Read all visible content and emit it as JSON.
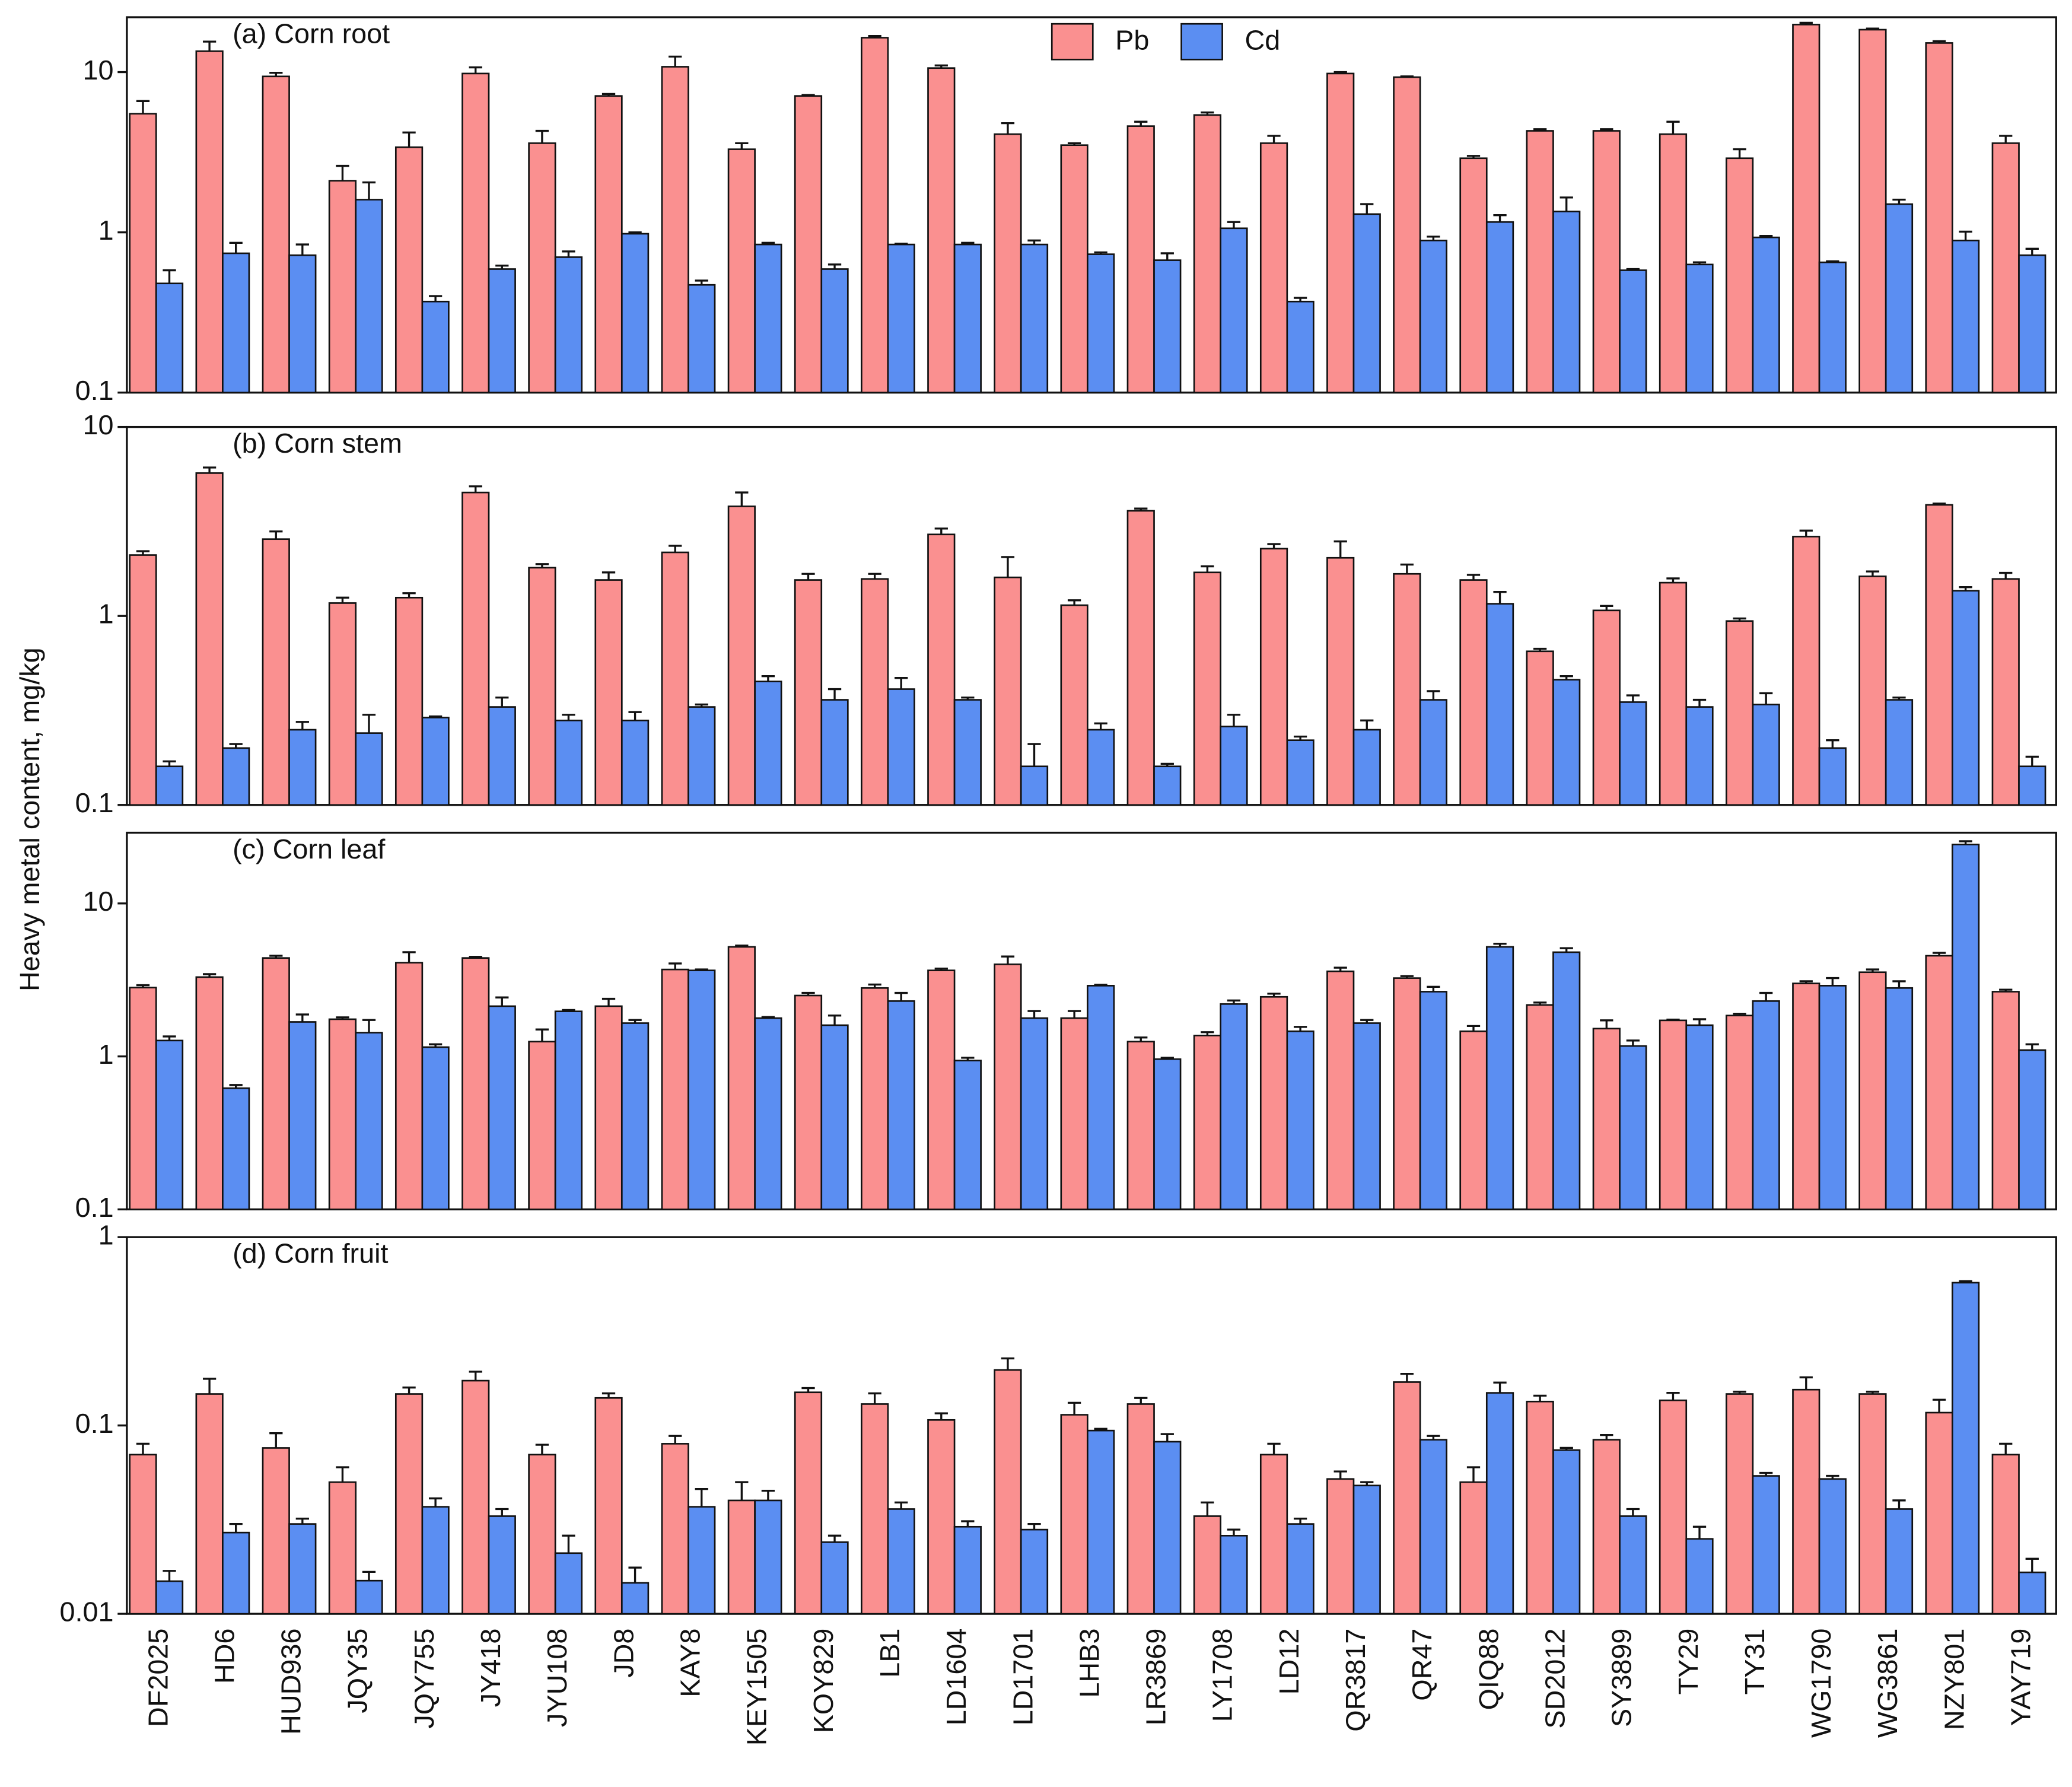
{
  "y_label": "Heavy metal content, mg/kg",
  "chart_data": [
    {
      "type": "bar",
      "title": "(a) Corn root",
      "log_scale": true,
      "ylim": [
        0.1,
        22
      ],
      "yticks": [
        0.1,
        1,
        10
      ],
      "legend": "upper center",
      "series": [
        {
          "name": "Pb",
          "color": "#fa9090",
          "values": [
            5.5,
            13.5,
            9.4,
            2.1,
            3.4,
            9.8,
            3.6,
            7.1,
            10.8,
            3.3,
            7.1,
            16.4,
            10.6,
            4.1,
            3.5,
            4.6,
            5.4,
            3.6,
            9.8,
            9.3,
            2.9,
            4.3,
            4.3,
            4.1,
            2.9,
            19.8,
            18.4,
            15.2,
            3.6
          ],
          "errors": [
            1.1,
            2,
            0.5,
            0.5,
            0.8,
            0.9,
            0.7,
            0.2,
            1.7,
            0.3,
            0.1,
            0.4,
            0.4,
            0.7,
            0.1,
            0.3,
            0.2,
            0.4,
            0.2,
            0.1,
            0.1,
            0.1,
            0.1,
            0.8,
            0.4,
            0.5,
            0.3,
            0.4,
            0.4
          ]
        },
        {
          "name": "Cd",
          "color": "#5b8ef2",
          "values": [
            0.48,
            0.74,
            0.72,
            1.6,
            0.37,
            0.59,
            0.7,
            0.98,
            0.47,
            0.84,
            0.59,
            0.84,
            0.84,
            0.84,
            0.73,
            0.67,
            1.06,
            0.37,
            1.3,
            0.89,
            1.16,
            1.35,
            0.58,
            0.63,
            0.93,
            0.65,
            1.5,
            0.89,
            0.72
          ],
          "errors": [
            0.1,
            0.12,
            0.12,
            0.45,
            0.03,
            0.03,
            0.06,
            0.02,
            0.03,
            0.02,
            0.04,
            0.01,
            0.02,
            0.05,
            0.02,
            0.07,
            0.1,
            0.02,
            0.2,
            0.05,
            0.12,
            0.3,
            0.01,
            0.02,
            0.02,
            0.01,
            0.1,
            0.12,
            0.07
          ]
        }
      ]
    },
    {
      "type": "bar",
      "title": "(b) Corn stem",
      "log_scale": true,
      "ylim": [
        0.1,
        10
      ],
      "yticks": [
        0.1,
        1,
        10
      ],
      "series": [
        {
          "color": "#fa9090",
          "values": [
            2.1,
            5.7,
            2.55,
            1.17,
            1.25,
            4.5,
            1.8,
            1.55,
            2.17,
            3.8,
            1.55,
            1.57,
            2.7,
            1.6,
            1.14,
            3.6,
            1.7,
            2.27,
            2.03,
            1.67,
            1.55,
            0.65,
            1.07,
            1.5,
            0.94,
            2.63,
            1.62,
            3.87,
            1.57
          ],
          "errors": [
            0.1,
            0.4,
            0.25,
            0.08,
            0.07,
            0.35,
            0.08,
            0.15,
            0.18,
            0.7,
            0.12,
            0.1,
            0.2,
            0.45,
            0.07,
            0.1,
            0.13,
            0.13,
            0.45,
            0.2,
            0.1,
            0.02,
            0.06,
            0.08,
            0.03,
            0.2,
            0.1,
            0.06,
            0.12
          ]
        },
        {
          "color": "#5b8ef2",
          "values": [
            0.16,
            0.2,
            0.25,
            0.24,
            0.29,
            0.33,
            0.28,
            0.28,
            0.33,
            0.45,
            0.36,
            0.41,
            0.36,
            0.16,
            0.25,
            0.16,
            0.26,
            0.22,
            0.25,
            0.36,
            1.16,
            0.46,
            0.35,
            0.33,
            0.34,
            0.2,
            0.36,
            1.36,
            0.16
          ],
          "errors": [
            0.01,
            0.01,
            0.025,
            0.06,
            0.004,
            0.04,
            0.02,
            0.03,
            0.01,
            0.03,
            0.05,
            0.06,
            0.01,
            0.05,
            0.02,
            0.005,
            0.04,
            0.01,
            0.03,
            0.04,
            0.18,
            0.02,
            0.03,
            0.03,
            0.05,
            0.02,
            0.01,
            0.06,
            0.02
          ]
        }
      ]
    },
    {
      "type": "bar",
      "title": "(c) Corn leaf",
      "log_scale": true,
      "ylim": [
        0.1,
        29
      ],
      "yticks": [
        0.1,
        1,
        10
      ],
      "series": [
        {
          "color": "#fa9090",
          "values": [
            2.82,
            3.3,
            4.4,
            1.75,
            4.1,
            4.4,
            1.25,
            2.13,
            3.7,
            5.2,
            2.5,
            2.8,
            3.65,
            4.0,
            1.78,
            1.25,
            1.37,
            2.45,
            3.6,
            3.25,
            1.46,
            2.17,
            1.52,
            1.72,
            1.85,
            3.0,
            3.55,
            4.55,
            2.65
          ],
          "errors": [
            0.1,
            0.15,
            0.15,
            0.05,
            0.7,
            0.08,
            0.25,
            0.25,
            0.35,
            0.1,
            0.1,
            0.15,
            0.1,
            0.5,
            0.2,
            0.08,
            0.07,
            0.12,
            0.2,
            0.1,
            0.12,
            0.08,
            0.2,
            0.02,
            0.05,
            0.1,
            0.15,
            0.2,
            0.08
          ]
        },
        {
          "color": "#5b8ef2",
          "values": [
            1.27,
            0.62,
            1.68,
            1.43,
            1.15,
            2.13,
            1.97,
            1.65,
            3.65,
            1.78,
            1.6,
            2.3,
            0.94,
            1.78,
            2.9,
            0.96,
            2.2,
            1.46,
            1.65,
            2.65,
            5.2,
            4.8,
            1.17,
            1.6,
            2.3,
            2.9,
            2.8,
            24.3,
            1.1
          ],
          "errors": [
            0.08,
            0.03,
            0.2,
            0.3,
            0.05,
            0.3,
            0.04,
            0.08,
            0.05,
            0.03,
            0.25,
            0.3,
            0.04,
            0.2,
            0.04,
            0.02,
            0.12,
            0.1,
            0.08,
            0.2,
            0.25,
            0.3,
            0.1,
            0.15,
            0.3,
            0.35,
            0.3,
            1.2,
            0.1
          ]
        }
      ]
    },
    {
      "type": "bar",
      "title": "(d) Corn fruit",
      "log_scale": true,
      "ylim": [
        0.01,
        1
      ],
      "yticks": [
        0.01,
        0.1,
        1
      ],
      "categories": [
        "DF2025",
        "HD6",
        "HUD936",
        "JQY35",
        "JQY755",
        "JY418",
        "JYU108",
        "JD8",
        "KAY8",
        "KEY1505",
        "KOY829",
        "LB1",
        "LD1604",
        "LD1701",
        "LHB3",
        "LR3869",
        "LY1708",
        "LD12",
        "QR3817",
        "QR47",
        "QIQ88",
        "SD2012",
        "SY3899",
        "TY29",
        "TY31",
        "WG1790",
        "WG3861",
        "NZY801",
        "YAY719"
      ],
      "series": [
        {
          "color": "#fa9090",
          "values": [
            0.07,
            0.147,
            0.076,
            0.05,
            0.147,
            0.173,
            0.07,
            0.14,
            0.08,
            0.04,
            0.15,
            0.13,
            0.107,
            0.197,
            0.114,
            0.13,
            0.033,
            0.07,
            0.052,
            0.17,
            0.05,
            0.134,
            0.084,
            0.136,
            0.147,
            0.155,
            0.147,
            0.117,
            0.07
          ],
          "errors": [
            0.01,
            0.03,
            0.015,
            0.01,
            0.012,
            0.02,
            0.009,
            0.008,
            0.008,
            0.01,
            0.008,
            0.018,
            0.009,
            0.03,
            0.018,
            0.01,
            0.006,
            0.01,
            0.005,
            0.018,
            0.01,
            0.01,
            0.005,
            0.013,
            0.004,
            0.025,
            0.004,
            0.02,
            0.01
          ]
        },
        {
          "color": "#5b8ef2",
          "values": [
            0.0149,
            0.027,
            0.03,
            0.015,
            0.037,
            0.033,
            0.021,
            0.0146,
            0.037,
            0.04,
            0.024,
            0.036,
            0.029,
            0.028,
            0.094,
            0.082,
            0.026,
            0.03,
            0.048,
            0.084,
            0.149,
            0.074,
            0.033,
            0.025,
            0.054,
            0.052,
            0.036,
            0.573,
            0.0166
          ],
          "errors": [
            0.002,
            0.003,
            0.002,
            0.0017,
            0.004,
            0.003,
            0.005,
            0.003,
            0.009,
            0.005,
            0.002,
            0.003,
            0.002,
            0.002,
            0.002,
            0.008,
            0.002,
            0.002,
            0.002,
            0.004,
            0.02,
            0.002,
            0.003,
            0.004,
            0.002,
            0.002,
            0.004,
            0.01,
            0.003
          ]
        }
      ]
    }
  ]
}
